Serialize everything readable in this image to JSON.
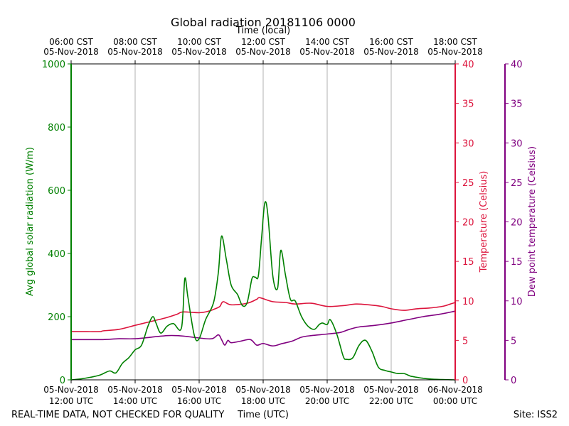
{
  "colors": {
    "radiation": "#008000",
    "temperature": "#dc143c",
    "dewpoint": "#800080",
    "grid": "#b0b0b0",
    "axis": "#000000"
  },
  "footer": {
    "left_note": "REAL-TIME DATA, NOT CHECKED FOR QUALITY",
    "site": "Site: ISS2"
  },
  "chart_data": {
    "type": "line",
    "title": "Global radiation 20181106 0000",
    "xlabel_top": "Time (local)",
    "xlabel_bottom": "Time (UTC)",
    "ylabel_left": "Avg global solar radiation (W/m)",
    "ylabel_right1": "Temperature (Celsius)",
    "ylabel_right2": "Dew point temperature (Celsius)",
    "x_range_hours_utc": [
      12,
      24
    ],
    "ylim_left": [
      0,
      1000
    ],
    "ylim_right1": [
      0,
      40
    ],
    "ylim_right2": [
      0,
      40
    ],
    "yticks_left": [
      0,
      200,
      400,
      600,
      800,
      1000
    ],
    "yticks_right": [
      0,
      5,
      10,
      15,
      20,
      25,
      30,
      35,
      40
    ],
    "grid": "vertical",
    "xticks_bottom": [
      {
        "h": 12,
        "date": "05-Nov-2018",
        "time": "12:00 UTC"
      },
      {
        "h": 14,
        "date": "05-Nov-2018",
        "time": "14:00 UTC"
      },
      {
        "h": 16,
        "date": "05-Nov-2018",
        "time": "16:00 UTC"
      },
      {
        "h": 18,
        "date": "05-Nov-2018",
        "time": "18:00 UTC"
      },
      {
        "h": 20,
        "date": "05-Nov-2018",
        "time": "20:00 UTC"
      },
      {
        "h": 22,
        "date": "05-Nov-2018",
        "time": "22:00 UTC"
      },
      {
        "h": 24,
        "date": "06-Nov-2018",
        "time": "00:00 UTC"
      }
    ],
    "xticks_top": [
      {
        "h": 12,
        "time": "06:00 CST",
        "date": "05-Nov-2018"
      },
      {
        "h": 14,
        "time": "08:00 CST",
        "date": "05-Nov-2018"
      },
      {
        "h": 16,
        "time": "10:00 CST",
        "date": "05-Nov-2018"
      },
      {
        "h": 18,
        "time": "12:00 CST",
        "date": "05-Nov-2018"
      },
      {
        "h": 20,
        "time": "14:00 CST",
        "date": "05-Nov-2018"
      },
      {
        "h": 22,
        "time": "16:00 CST",
        "date": "05-Nov-2018"
      },
      {
        "h": 24,
        "time": "18:00 CST",
        "date": "05-Nov-2018"
      }
    ],
    "series": [
      {
        "name": "Avg global solar radiation",
        "axis": "left",
        "color": "#008000",
        "x": [
          12.0,
          12.3,
          12.6,
          12.9,
          13.2,
          13.4,
          13.6,
          13.8,
          14.0,
          14.2,
          14.4,
          14.55,
          14.65,
          14.8,
          15.0,
          15.2,
          15.45,
          15.55,
          15.65,
          15.85,
          16.0,
          16.2,
          16.45,
          16.6,
          16.7,
          16.85,
          17.0,
          17.2,
          17.35,
          17.5,
          17.65,
          17.75,
          17.85,
          17.95,
          18.05,
          18.15,
          18.3,
          18.45,
          18.55,
          18.7,
          18.85,
          19.0,
          19.2,
          19.4,
          19.6,
          19.75,
          19.85,
          20.0,
          20.1,
          20.3,
          20.5,
          20.6,
          20.8,
          21.0,
          21.2,
          21.4,
          21.6,
          21.8,
          22.0,
          22.2,
          22.4,
          22.6,
          22.8,
          23.0,
          23.3,
          23.6,
          24.0
        ],
        "values": [
          0,
          3,
          8,
          15,
          28,
          22,
          52,
          70,
          95,
          110,
          170,
          200,
          180,
          148,
          170,
          178,
          165,
          320,
          260,
          140,
          130,
          190,
          245,
          340,
          455,
          380,
          300,
          270,
          235,
          245,
          320,
          325,
          330,
          450,
          560,
          520,
          330,
          290,
          410,
          330,
          255,
          250,
          200,
          170,
          160,
          175,
          180,
          175,
          190,
          145,
          75,
          65,
          70,
          110,
          125,
          90,
          40,
          30,
          25,
          20,
          20,
          12,
          8,
          5,
          2,
          1,
          0
        ]
      },
      {
        "name": "Temperature",
        "axis": "right1",
        "color": "#dc143c",
        "x": [
          12.0,
          12.5,
          12.9,
          13.0,
          13.5,
          14.0,
          14.3,
          14.6,
          15.0,
          15.3,
          15.5,
          16.0,
          16.3,
          16.5,
          16.65,
          16.75,
          17.0,
          17.5,
          17.8,
          17.9,
          18.3,
          18.7,
          19.0,
          19.5,
          20.0,
          20.5,
          20.9,
          21.3,
          21.7,
          22.0,
          22.4,
          22.8,
          23.2,
          23.6,
          23.85,
          24.0
        ],
        "values": [
          6.1,
          6.1,
          6.1,
          6.2,
          6.4,
          6.9,
          7.2,
          7.5,
          7.9,
          8.3,
          8.6,
          8.5,
          8.7,
          9.0,
          9.3,
          9.9,
          9.5,
          9.7,
          10.2,
          10.4,
          9.9,
          9.8,
          9.6,
          9.7,
          9.3,
          9.4,
          9.6,
          9.5,
          9.3,
          9.0,
          8.8,
          9.0,
          9.1,
          9.3,
          9.6,
          9.8
        ]
      },
      {
        "name": "Dew point temperature",
        "axis": "right2",
        "color": "#800080",
        "x": [
          12.0,
          12.5,
          13.0,
          13.5,
          14.0,
          14.5,
          15.0,
          15.3,
          15.6,
          16.0,
          16.4,
          16.6,
          16.7,
          16.8,
          16.9,
          17.0,
          17.3,
          17.6,
          17.8,
          18.0,
          18.3,
          18.6,
          18.9,
          19.2,
          19.5,
          20.0,
          20.4,
          20.7,
          21.0,
          21.5,
          22.0,
          22.5,
          23.0,
          23.5,
          24.0
        ],
        "values": [
          5.1,
          5.1,
          5.1,
          5.2,
          5.2,
          5.4,
          5.6,
          5.6,
          5.5,
          5.3,
          5.2,
          5.7,
          5.1,
          4.4,
          5.0,
          4.7,
          4.9,
          5.1,
          4.4,
          4.6,
          4.3,
          4.6,
          4.9,
          5.4,
          5.6,
          5.8,
          6.0,
          6.4,
          6.7,
          6.9,
          7.2,
          7.6,
          8.0,
          8.3,
          8.7
        ]
      }
    ]
  }
}
